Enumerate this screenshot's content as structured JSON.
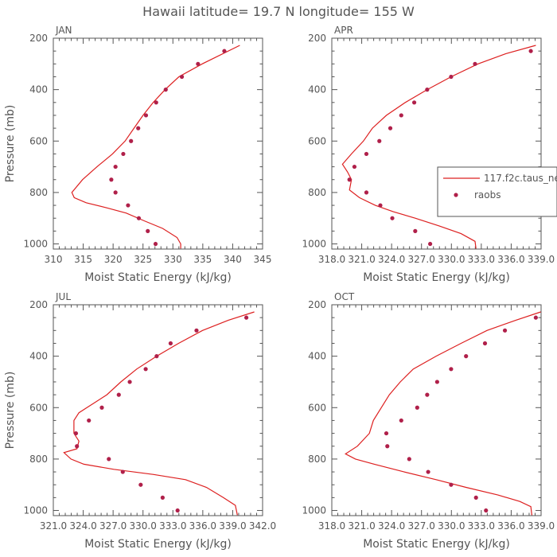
{
  "figure": {
    "title": "Hawaii  latitude= 19.7 N longitude= 155 W",
    "colors": {
      "model": "#dd2020",
      "raobs": "#b0204a",
      "axis": "#555555"
    }
  },
  "legend": {
    "model_label": "117.f2c.taus_ne",
    "raobs_label": "raobs"
  },
  "chart_data": [
    {
      "type": "line",
      "panel": "JAN",
      "xlabel": "Moist Static Energy (kJ/kg)",
      "ylabel": "Pressure (mb)",
      "xlim": [
        310,
        345
      ],
      "ylim": [
        1020,
        200
      ],
      "xticks": [
        310,
        315,
        320,
        325,
        330,
        335,
        340,
        345
      ],
      "xtick_labels": [
        "310",
        "315",
        "320",
        "325",
        "330",
        "335",
        "340",
        "345"
      ],
      "yticks": [
        200,
        400,
        600,
        800,
        1000
      ],
      "ytick_labels": [
        "200",
        "400",
        "600",
        "800",
        "1000"
      ],
      "series": [
        {
          "name": "117.f2c.taus_ne",
          "kind": "line",
          "points": [
            [
              341.2,
              228
            ],
            [
              334.9,
              300
            ],
            [
              331,
              350
            ],
            [
              328.7,
              400
            ],
            [
              326.7,
              450
            ],
            [
              325,
              500
            ],
            [
              323.5,
              550
            ],
            [
              322,
              600
            ],
            [
              319.9,
              650
            ],
            [
              317.3,
              700
            ],
            [
              314.9,
              750
            ],
            [
              313.1,
              800
            ],
            [
              313.5,
              820
            ],
            [
              315.5,
              840
            ],
            [
              319,
              860
            ],
            [
              322.2,
              880
            ],
            [
              325.2,
              910
            ],
            [
              328.3,
              940
            ],
            [
              330.7,
              975
            ],
            [
              331.3,
              1000
            ],
            [
              331.3,
              1018
            ]
          ]
        },
        {
          "name": "raobs",
          "kind": "scatter",
          "points": [
            [
              338.6,
              250
            ],
            [
              334.2,
              300
            ],
            [
              331.5,
              350
            ],
            [
              328.8,
              400
            ],
            [
              327.2,
              450
            ],
            [
              325.5,
              500
            ],
            [
              324.2,
              550
            ],
            [
              323,
              600
            ],
            [
              321.7,
              650
            ],
            [
              320.4,
              700
            ],
            [
              319.7,
              750
            ],
            [
              320.4,
              800
            ],
            [
              322.5,
              850
            ],
            [
              324.3,
              900
            ],
            [
              325.8,
              950
            ],
            [
              327.1,
              1000
            ]
          ]
        }
      ]
    },
    {
      "type": "line",
      "panel": "APR",
      "xlabel": "Moist Static Energy (kJ/kg)",
      "ylabel": "Pressure (mb)",
      "xlim": [
        318.03,
        339.03
      ],
      "ylim": [
        1020,
        200
      ],
      "xticks": [
        318.03,
        321.03,
        324.03,
        327.03,
        330.03,
        333.03,
        336.03,
        339.03
      ],
      "xtick_labels": [
        "318.0",
        "321.0",
        "324.0",
        "327.0",
        "330.0",
        "333.0",
        "336.0",
        "339.0"
      ],
      "yticks": [
        200,
        400,
        600,
        800,
        1000
      ],
      "ytick_labels": [
        "200",
        "400",
        "600",
        "800",
        "1000"
      ],
      "series": [
        {
          "name": "117.f2c.taus_ne",
          "kind": "line",
          "points": [
            [
              338.5,
              228
            ],
            [
              335.5,
              260
            ],
            [
              332.7,
              300
            ],
            [
              330,
              350
            ],
            [
              327.6,
              400
            ],
            [
              325.4,
              450
            ],
            [
              323.5,
              500
            ],
            [
              322.1,
              550
            ],
            [
              321.2,
              600
            ],
            [
              320,
              650
            ],
            [
              319.1,
              690
            ],
            [
              319.6,
              720
            ],
            [
              320,
              750
            ],
            [
              319.8,
              790
            ],
            [
              320.8,
              820
            ],
            [
              322.4,
              850
            ],
            [
              324.2,
              875
            ],
            [
              326.4,
              900
            ],
            [
              328.8,
              930
            ],
            [
              331,
              960
            ],
            [
              332.4,
              990
            ],
            [
              332.5,
              1018
            ]
          ]
        },
        {
          "name": "raobs",
          "kind": "scatter",
          "points": [
            [
              338,
              250
            ],
            [
              332.4,
              300
            ],
            [
              330,
              350
            ],
            [
              327.6,
              400
            ],
            [
              326.3,
              450
            ],
            [
              325,
              500
            ],
            [
              323.9,
              550
            ],
            [
              322.8,
              600
            ],
            [
              321.5,
              650
            ],
            [
              320.3,
              700
            ],
            [
              319.8,
              750
            ],
            [
              321.5,
              800
            ],
            [
              322.9,
              850
            ],
            [
              324.1,
              900
            ],
            [
              326.4,
              950
            ],
            [
              327.9,
              1000
            ]
          ]
        }
      ]
    },
    {
      "type": "line",
      "panel": "JUL",
      "xlabel": "Moist Static Energy (kJ/kg)",
      "ylabel": "Pressure (mb)",
      "xlim": [
        321.03,
        342.03
      ],
      "ylim": [
        1020,
        200
      ],
      "xticks": [
        321.03,
        324.03,
        327.03,
        330.03,
        333.03,
        336.03,
        339.03,
        342.03
      ],
      "xtick_labels": [
        "321.0",
        "324.0",
        "327.0",
        "330.0",
        "333.0",
        "336.0",
        "339.0",
        "342.0"
      ],
      "yticks": [
        200,
        400,
        600,
        800,
        1000
      ],
      "ytick_labels": [
        "200",
        "400",
        "600",
        "800",
        "1000"
      ],
      "series": [
        {
          "name": "117.f2c.taus_ne",
          "kind": "line",
          "points": [
            [
              341.2,
              228
            ],
            [
              338.6,
              260
            ],
            [
              336,
              300
            ],
            [
              333.6,
              350
            ],
            [
              331.4,
              400
            ],
            [
              329.4,
              450
            ],
            [
              327.8,
              500
            ],
            [
              326.4,
              550
            ],
            [
              324.4,
              600
            ],
            [
              323.6,
              620
            ],
            [
              323.1,
              650
            ],
            [
              323.1,
              700
            ],
            [
              323.6,
              730
            ],
            [
              323.4,
              760
            ],
            [
              322.1,
              775
            ],
            [
              322.8,
              800
            ],
            [
              324.1,
              820
            ],
            [
              327.1,
              840
            ],
            [
              331.1,
              860
            ],
            [
              334.3,
              880
            ],
            [
              336.4,
              910
            ],
            [
              338.1,
              950
            ],
            [
              339.3,
              980
            ],
            [
              339.5,
              1018
            ]
          ]
        },
        {
          "name": "raobs",
          "kind": "scatter",
          "points": [
            [
              340.4,
              250
            ],
            [
              335.4,
              300
            ],
            [
              332.8,
              350
            ],
            [
              331.4,
              400
            ],
            [
              330.3,
              450
            ],
            [
              328.7,
              500
            ],
            [
              327.6,
              550
            ],
            [
              325.9,
              600
            ],
            [
              324.6,
              650
            ],
            [
              323.3,
              700
            ],
            [
              323.4,
              750
            ],
            [
              326.6,
              800
            ],
            [
              328,
              850
            ],
            [
              329.8,
              900
            ],
            [
              332,
              950
            ],
            [
              333.5,
              1000
            ]
          ]
        }
      ]
    },
    {
      "type": "line",
      "panel": "OCT",
      "xlabel": "Moist Static Energy (kJ/kg)",
      "ylabel": "Pressure (mb)",
      "xlim": [
        318.03,
        339.03
      ],
      "ylim": [
        1020,
        200
      ],
      "xticks": [
        318.03,
        321.03,
        324.03,
        327.03,
        330.03,
        333.03,
        336.03,
        339.03
      ],
      "xtick_labels": [
        "318.0",
        "321.0",
        "324.0",
        "327.0",
        "330.0",
        "333.0",
        "336.0",
        "339.0"
      ],
      "yticks": [
        200,
        400,
        600,
        800,
        1000
      ],
      "ytick_labels": [
        "200",
        "400",
        "600",
        "800",
        "1000"
      ],
      "series": [
        {
          "name": "117.f2c.taus_ne",
          "kind": "line",
          "points": [
            [
              339,
              228
            ],
            [
              336.5,
              260
            ],
            [
              333.6,
              300
            ],
            [
              331,
              350
            ],
            [
              328.5,
              400
            ],
            [
              326.2,
              450
            ],
            [
              324.9,
              500
            ],
            [
              323.8,
              550
            ],
            [
              323,
              600
            ],
            [
              322.2,
              650
            ],
            [
              321.8,
              700
            ],
            [
              320.6,
              750
            ],
            [
              319.4,
              780
            ],
            [
              320.4,
              800
            ],
            [
              322.3,
              820
            ],
            [
              325.3,
              850
            ],
            [
              328.5,
              880
            ],
            [
              331.5,
              910
            ],
            [
              334.7,
              940
            ],
            [
              336.9,
              965
            ],
            [
              338,
              985
            ],
            [
              338.1,
              1018
            ]
          ]
        },
        {
          "name": "raobs",
          "kind": "scatter",
          "points": [
            [
              338.5,
              250
            ],
            [
              335.4,
              300
            ],
            [
              333.4,
              350
            ],
            [
              331.5,
              400
            ],
            [
              330,
              450
            ],
            [
              328.6,
              500
            ],
            [
              327.6,
              550
            ],
            [
              326.6,
              600
            ],
            [
              325,
              650
            ],
            [
              323.5,
              700
            ],
            [
              323.6,
              750
            ],
            [
              325.8,
              800
            ],
            [
              327.7,
              850
            ],
            [
              330,
              900
            ],
            [
              332.5,
              950
            ],
            [
              333.5,
              1000
            ]
          ]
        }
      ]
    }
  ]
}
